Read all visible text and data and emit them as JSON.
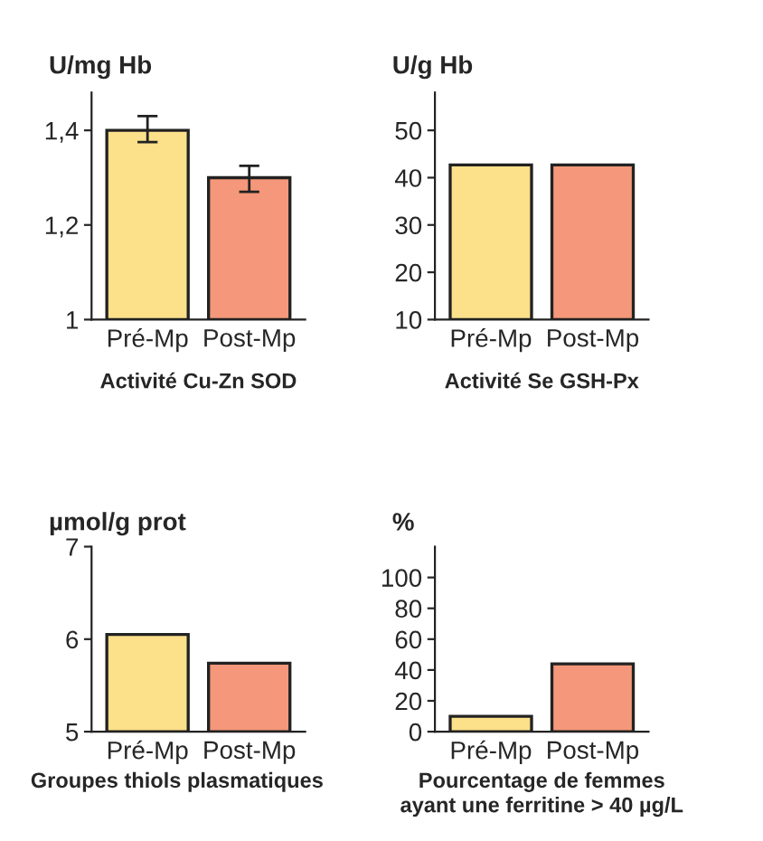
{
  "chart_data": [
    {
      "type": "bar",
      "title": "Activité Cu-Zn SOD",
      "ylabel": "U/mg Hb",
      "categories": [
        "Pré-Mp",
        "Post-Mp"
      ],
      "values": [
        1.4,
        1.3
      ],
      "colors": [
        "#fde08a",
        "#f4977a"
      ],
      "errors": [
        [
          1.375,
          1.43
        ],
        [
          1.27,
          1.325
        ]
      ],
      "ylim": [
        1,
        1.48
      ],
      "yticks": [
        1,
        {
          "value": 1.2,
          "label": "1,2"
        },
        {
          "value": 1.4,
          "label": "1,4"
        }
      ],
      "grid": false,
      "legend": false
    },
    {
      "type": "bar",
      "title": "Activité Se GSH-Px",
      "ylabel": "U/g Hb",
      "categories": [
        "Pré-Mp",
        "Post-Mp"
      ],
      "values": [
        42.7,
        42.7
      ],
      "colors": [
        "#fde08a",
        "#f4977a"
      ],
      "ylim": [
        10,
        58
      ],
      "yticks": [
        10,
        20,
        30,
        40,
        50
      ],
      "grid": false,
      "legend": false
    },
    {
      "type": "bar",
      "title": "Groupes thiols plasmatiques",
      "ylabel": "µmol/g prot",
      "categories": [
        "Pré-Mp",
        "Post-Mp"
      ],
      "values": [
        6.05,
        5.74
      ],
      "colors": [
        "#fde08a",
        "#f4977a"
      ],
      "ylim": [
        5,
        7
      ],
      "yticks": [
        5,
        6,
        7
      ],
      "grid": false,
      "legend": false
    },
    {
      "type": "bar",
      "title": "Pourcentage de femmes\nayant une ferritine > 40 µg/L",
      "ylabel": "%",
      "categories": [
        "Pré-Mp",
        "Post-Mp"
      ],
      "values": [
        10,
        44
      ],
      "colors": [
        "#fde08a",
        "#f4977a"
      ],
      "ylim": [
        0,
        120
      ],
      "yticks": [
        0,
        20,
        40,
        60,
        80,
        100
      ],
      "grid": false,
      "legend": false
    }
  ]
}
